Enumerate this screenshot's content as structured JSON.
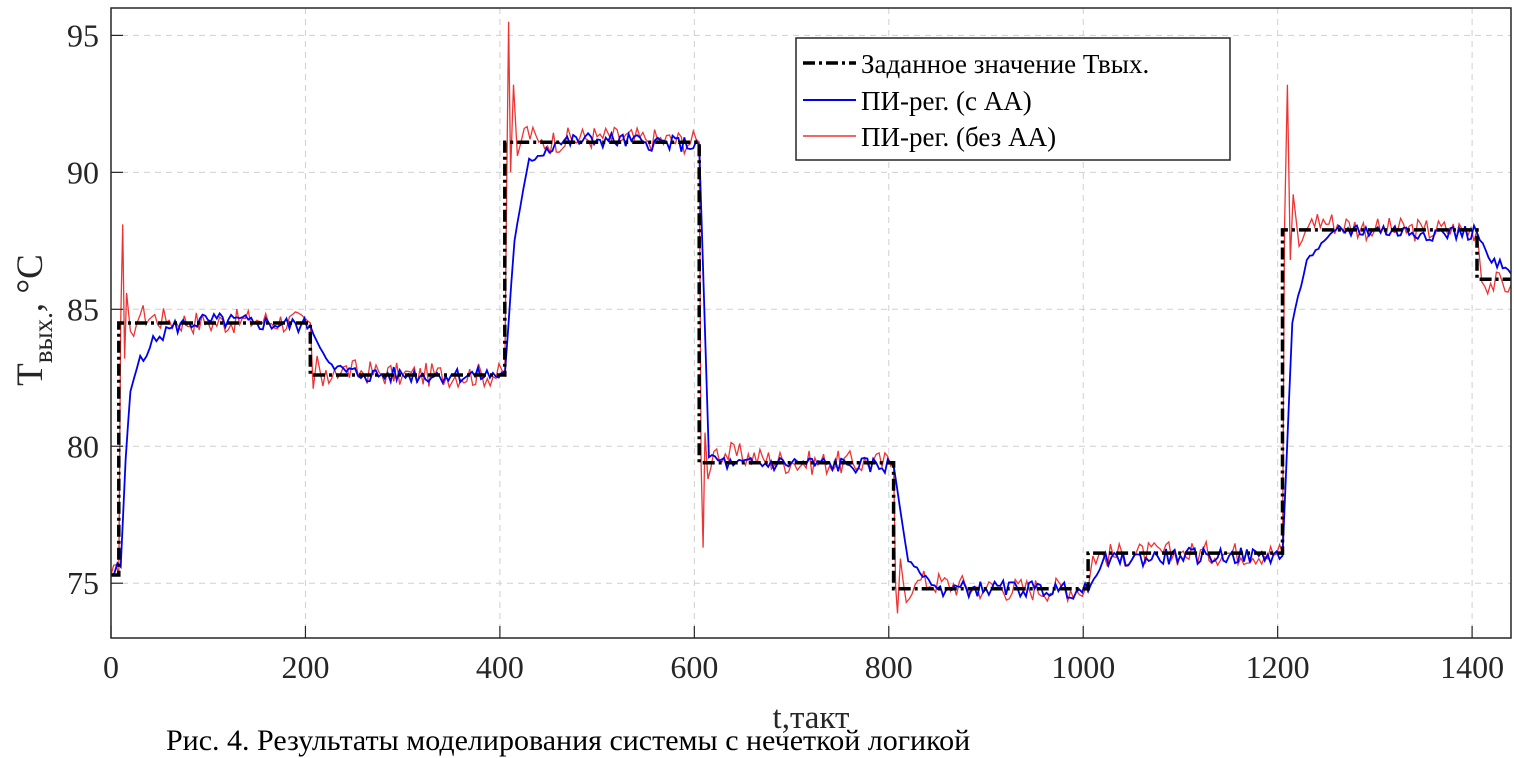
{
  "chart_data": {
    "type": "line",
    "xlabel": "t,такт",
    "ylabel": {
      "main": "T",
      "sub": "вых.",
      "unit": ", °C"
    },
    "xlim": [
      0,
      1440
    ],
    "ylim": [
      73,
      96
    ],
    "xticks": [
      0,
      200,
      400,
      600,
      800,
      1000,
      1200,
      1400
    ],
    "yticks": [
      75,
      80,
      85,
      90,
      95
    ],
    "grid": true,
    "legend_position": "top-right",
    "setpoint": {
      "name": "Заданное значение Твых.",
      "color": "#000000",
      "x": [
        0,
        8,
        8,
        205,
        205,
        405,
        405,
        605,
        605,
        805,
        805,
        1005,
        1005,
        1205,
        1205,
        1405,
        1405,
        1440
      ],
      "y": [
        75.3,
        75.3,
        84.5,
        84.5,
        82.6,
        82.6,
        91.1,
        91.1,
        79.4,
        79.4,
        74.8,
        74.8,
        76.1,
        76.1,
        87.9,
        87.9,
        86.1,
        86.1
      ]
    },
    "series": [
      {
        "name": "ПИ-рег. (с АА)",
        "color": "#0000ee",
        "x": [
          0,
          10,
          15,
          20,
          30,
          40,
          50,
          60,
          80,
          100,
          150,
          205,
          215,
          230,
          260,
          300,
          350,
          405,
          415,
          430,
          460,
          500,
          550,
          605,
          615,
          640,
          700,
          760,
          805,
          820,
          850,
          900,
          950,
          1005,
          1020,
          1100,
          1150,
          1205,
          1215,
          1230,
          1260,
          1300,
          1350,
          1405,
          1420,
          1440
        ],
        "y": [
          75.3,
          75.6,
          79.5,
          82.0,
          83.3,
          83.6,
          84.0,
          84.3,
          84.5,
          84.6,
          84.5,
          84.4,
          83.6,
          82.8,
          82.6,
          82.6,
          82.6,
          82.6,
          87.5,
          90.5,
          91.1,
          91.2,
          91.1,
          91.0,
          79.6,
          79.3,
          79.4,
          79.3,
          79.3,
          75.8,
          74.8,
          74.8,
          74.8,
          74.7,
          75.8,
          76.0,
          76.0,
          76.0,
          84.5,
          86.8,
          87.9,
          87.9,
          87.8,
          87.8,
          86.7,
          86.3
        ]
      },
      {
        "name": "ПИ-рег. (без АА)",
        "color": "#ee3333",
        "x": [
          0,
          8,
          10,
          12,
          14,
          16,
          20,
          30,
          60,
          100,
          150,
          205,
          208,
          212,
          218,
          230,
          300,
          405,
          407,
          409,
          411,
          414,
          418,
          425,
          440,
          500,
          550,
          605,
          607,
          609,
          611,
          614,
          620,
          700,
          805,
          807,
          809,
          812,
          818,
          830,
          900,
          1005,
          1010,
          1100,
          1150,
          1205,
          1207,
          1210,
          1213,
          1216,
          1222,
          1235,
          1300,
          1350,
          1405,
          1410,
          1440
        ],
        "y": [
          75.3,
          75.3,
          84.5,
          88.1,
          83.2,
          85.6,
          84.2,
          84.8,
          84.6,
          84.5,
          84.6,
          84.5,
          82.1,
          83.3,
          82.2,
          82.8,
          82.6,
          82.6,
          89.5,
          95.5,
          90.0,
          93.2,
          90.6,
          91.6,
          91.1,
          91.3,
          91.2,
          91.1,
          79.4,
          76.3,
          80.5,
          78.8,
          79.8,
          79.4,
          79.4,
          74.9,
          73.9,
          75.9,
          74.3,
          75.1,
          74.8,
          74.8,
          76.0,
          76.1,
          76.1,
          76.1,
          87.9,
          93.2,
          86.8,
          89.2,
          87.3,
          88.3,
          87.9,
          87.9,
          87.9,
          86.0,
          85.9
        ]
      }
    ]
  },
  "caption": "Рис. 4. Результаты моделирования системы с нечеткой логикой"
}
